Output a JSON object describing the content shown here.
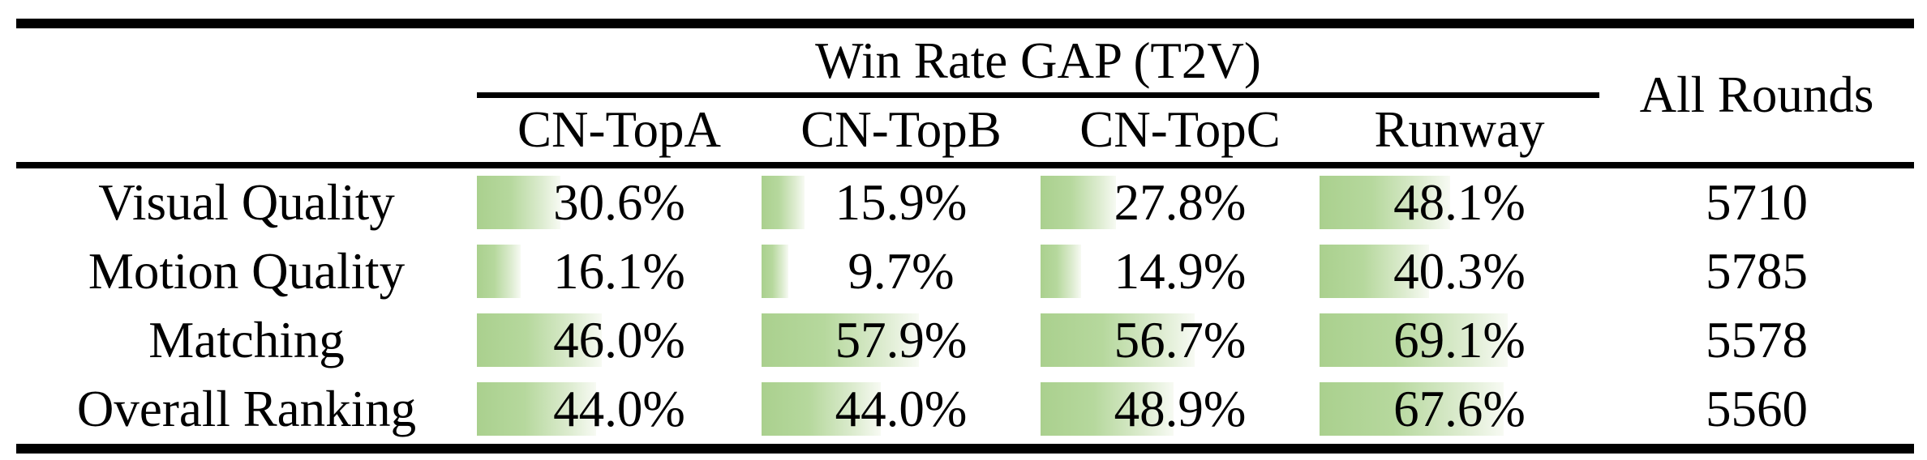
{
  "header": {
    "group_title": "Win Rate GAP (T2V)",
    "columns": [
      "CN-TopA",
      "CN-TopB",
      "CN-TopC",
      "Runway"
    ],
    "all_rounds_label": "All Rounds"
  },
  "rows": [
    {
      "label": "Visual Quality",
      "cells": [
        {
          "text": "30.6%",
          "value": 30.6
        },
        {
          "text": "15.9%",
          "value": 15.9
        },
        {
          "text": "27.8%",
          "value": 27.8
        },
        {
          "text": "48.1%",
          "value": 48.1
        }
      ],
      "all_rounds": "5710"
    },
    {
      "label": "Motion Quality",
      "cells": [
        {
          "text": "16.1%",
          "value": 16.1
        },
        {
          "text": "9.7%",
          "value": 9.7
        },
        {
          "text": "14.9%",
          "value": 14.9
        },
        {
          "text": "40.3%",
          "value": 40.3
        }
      ],
      "all_rounds": "5785"
    },
    {
      "label": "Matching",
      "cells": [
        {
          "text": "46.0%",
          "value": 46.0
        },
        {
          "text": "57.9%",
          "value": 57.9
        },
        {
          "text": "56.7%",
          "value": 56.7
        },
        {
          "text": "69.1%",
          "value": 69.1
        }
      ],
      "all_rounds": "5578"
    },
    {
      "label": "Overall Ranking",
      "cells": [
        {
          "text": "44.0%",
          "value": 44.0
        },
        {
          "text": "44.0%",
          "value": 44.0
        },
        {
          "text": "48.9%",
          "value": 48.9
        },
        {
          "text": "67.6%",
          "value": 67.6
        }
      ],
      "all_rounds": "5560"
    }
  ],
  "colors": {
    "bar_green": "#aad08e",
    "bar_green_mid": "#b6d89d",
    "bar_fade_mid": "#ddecd0",
    "bar_fade": "#f7faf3",
    "rule_black": "#000000",
    "text_black": "#000000",
    "background": "#ffffff"
  },
  "chart_data": {
    "type": "table",
    "title": "Win Rate GAP (T2V)",
    "columns": [
      "CN-TopA",
      "CN-TopB",
      "CN-TopC",
      "Runway",
      "All Rounds"
    ],
    "row_labels": [
      "Visual Quality",
      "Motion Quality",
      "Matching",
      "Overall Ranking"
    ],
    "values": [
      [
        30.6,
        15.9,
        27.8,
        48.1,
        5710
      ],
      [
        16.1,
        9.7,
        14.9,
        40.3,
        5785
      ],
      [
        46.0,
        57.9,
        56.7,
        69.1,
        5578
      ],
      [
        44.0,
        44.0,
        48.9,
        67.6,
        5560
      ]
    ],
    "percent_columns": [
      "CN-TopA",
      "CN-TopB",
      "CN-TopC",
      "Runway"
    ],
    "count_columns": [
      "All Rounds"
    ],
    "bar_style": "horizontal green gradient data bars behind percentage text, width proportional to value, shared scale across all percent columns"
  }
}
